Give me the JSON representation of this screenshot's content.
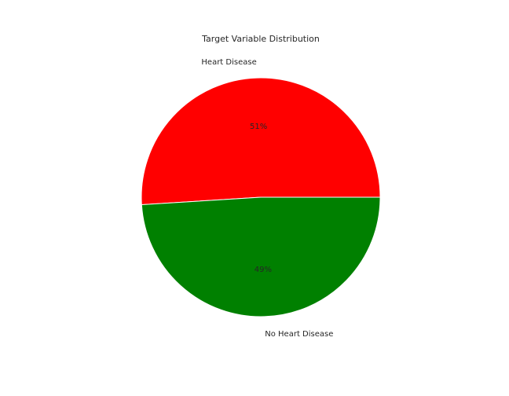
{
  "chart_data": {
    "type": "pie",
    "title": "Target Variable Distribution",
    "slices": [
      {
        "label": "Heart Disease",
        "value": 51,
        "pct_text": "51%",
        "color": "#ff0000"
      },
      {
        "label": "No Heart Disease",
        "value": 49,
        "pct_text": "49%",
        "color": "#008000"
      }
    ],
    "start_angle_deg": 0,
    "direction": "counterclockwise",
    "wedge_edge_color": "#ffffff",
    "legend": "none"
  }
}
